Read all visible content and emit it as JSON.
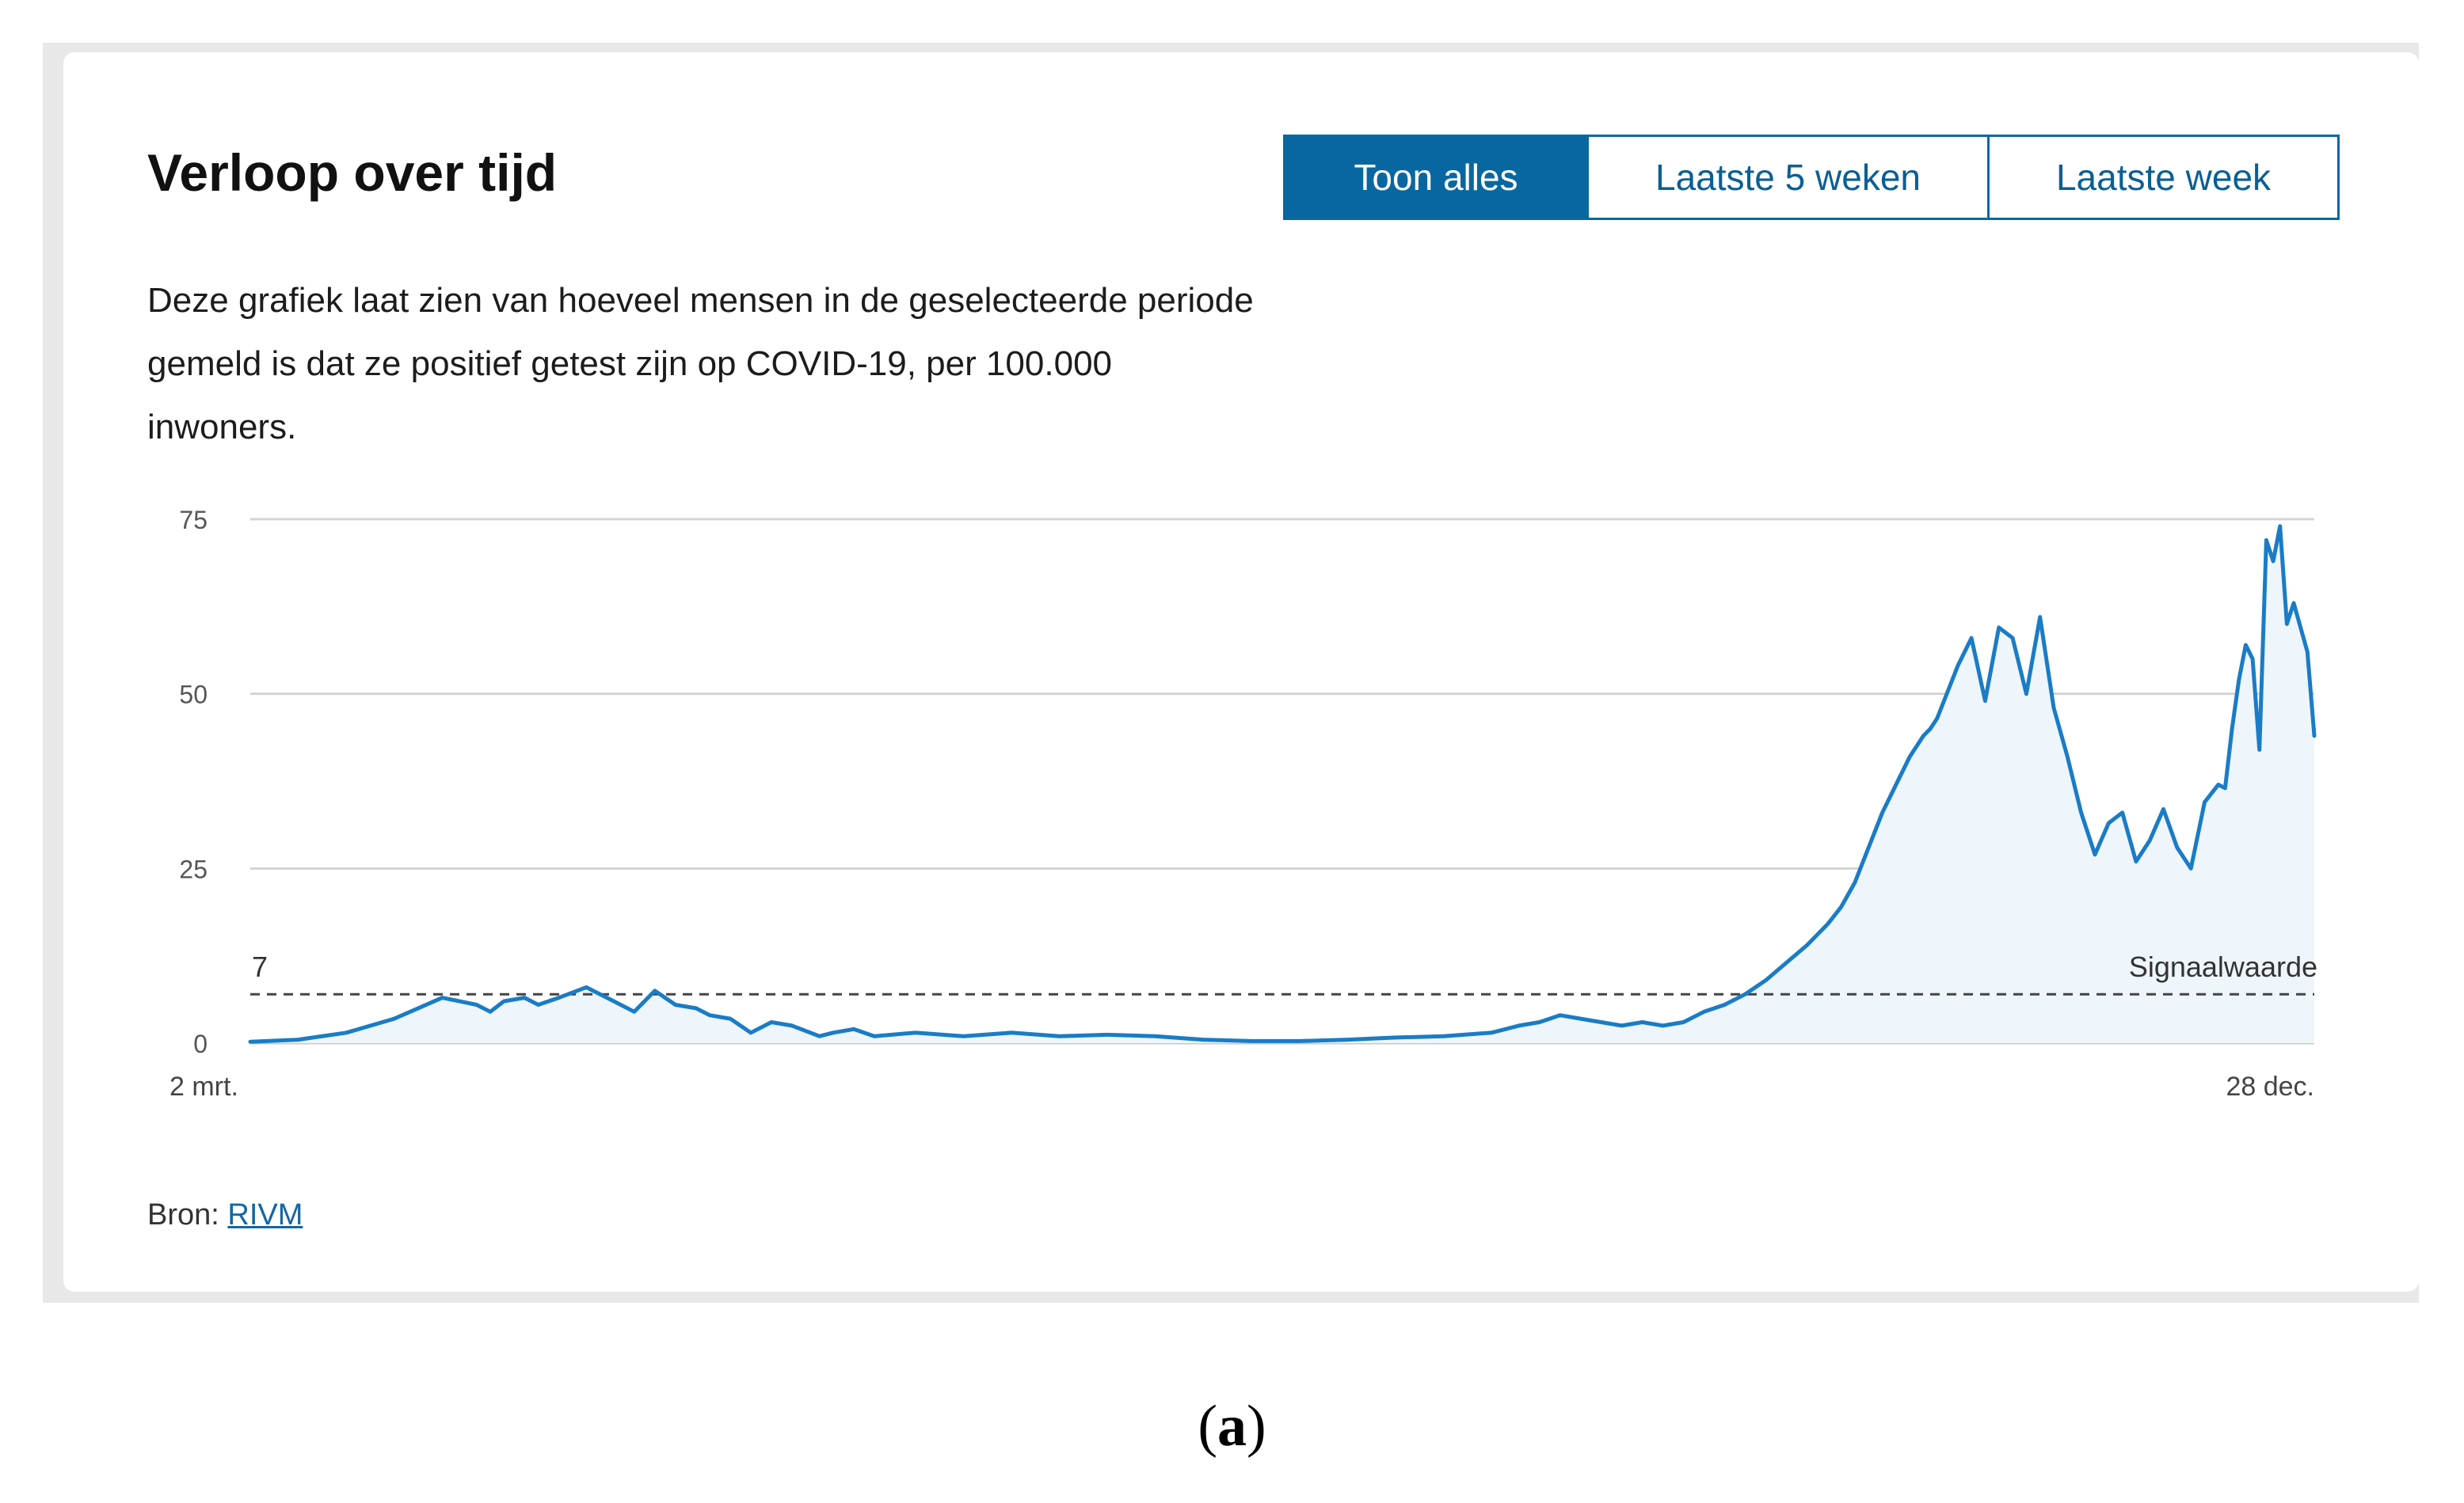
{
  "header": {
    "title": "Verloop over tijd",
    "description": "Deze grafiek laat zien van hoeveel mensen in de geselecteerde periode gemeld is dat ze positief getest zijn op COVID-19, per 100.000 inwoners."
  },
  "toggle": {
    "options": [
      "Toon alles",
      "Laatste 5 weken",
      "Laatste week"
    ],
    "active": "Toon alles"
  },
  "source": {
    "label": "Bron:",
    "link": "RIVM"
  },
  "caption": {
    "open": "(",
    "letter": "a",
    "close": ")"
  },
  "colors": {
    "accent": "#0867a0",
    "line": "#1a7cc6",
    "area": "#eef5fb",
    "grid": "#d4d4d4",
    "threshold": "#444444"
  },
  "chart_data": {
    "type": "area",
    "title": "",
    "xlabel": "",
    "ylabel": "",
    "ylim": [
      0,
      75
    ],
    "yticks": [
      0,
      25,
      50,
      75
    ],
    "xlim": [
      "2020-03-02",
      "2020-12-28"
    ],
    "xtick_labels": [
      "2 mrt.",
      "28 dec."
    ],
    "grid": true,
    "threshold": {
      "value": 7,
      "value_label": "7",
      "label": "Signaalwaarde"
    },
    "series": [
      {
        "x": [
          "2020-03-02",
          "2020-03-09",
          "2020-03-16",
          "2020-03-23",
          "2020-03-30",
          "2020-04-04",
          "2020-04-06",
          "2020-04-08",
          "2020-04-11",
          "2020-04-13",
          "2020-04-16",
          "2020-04-20",
          "2020-04-24",
          "2020-04-27",
          "2020-04-30",
          "2020-05-03",
          "2020-05-06",
          "2020-05-08",
          "2020-05-11",
          "2020-05-14",
          "2020-05-17",
          "2020-05-20",
          "2020-05-24",
          "2020-05-26",
          "2020-05-29",
          "2020-06-01",
          "2020-06-07",
          "2020-06-14",
          "2020-06-21",
          "2020-06-28",
          "2020-07-05",
          "2020-07-12",
          "2020-07-19",
          "2020-07-26",
          "2020-08-02",
          "2020-08-09",
          "2020-08-16",
          "2020-08-23",
          "2020-08-30",
          "2020-09-03",
          "2020-09-06",
          "2020-09-09",
          "2020-09-12",
          "2020-09-15",
          "2020-09-18",
          "2020-09-21",
          "2020-09-24",
          "2020-09-27",
          "2020-09-30",
          "2020-10-03",
          "2020-10-06",
          "2020-10-09",
          "2020-10-12",
          "2020-10-15",
          "2020-10-18",
          "2020-10-20",
          "2020-10-22",
          "2020-10-24",
          "2020-10-26",
          "2020-10-28",
          "2020-10-30",
          "2020-11-01",
          "2020-11-02",
          "2020-11-03",
          "2020-11-04",
          "2020-11-06",
          "2020-11-08",
          "2020-11-10",
          "2020-11-12",
          "2020-11-14",
          "2020-11-16",
          "2020-11-18",
          "2020-11-20",
          "2020-11-22",
          "2020-11-24",
          "2020-11-26",
          "2020-11-28",
          "2020-11-30",
          "2020-12-02",
          "2020-12-04",
          "2020-12-06",
          "2020-12-08",
          "2020-12-10",
          "2020-12-12",
          "2020-12-14",
          "2020-12-15",
          "2020-12-16",
          "2020-12-17",
          "2020-12-18",
          "2020-12-19",
          "2020-12-20",
          "2020-12-21",
          "2020-12-22",
          "2020-12-23",
          "2020-12-24",
          "2020-12-25",
          "2020-12-27",
          "2020-12-28"
        ],
        "values": [
          0.2,
          0.5,
          1.5,
          3.5,
          6.5,
          5.5,
          4.5,
          6.0,
          6.5,
          5.5,
          6.5,
          8.0,
          6.0,
          4.5,
          7.5,
          5.5,
          5.0,
          4.0,
          3.5,
          1.5,
          3.0,
          2.5,
          1.0,
          1.5,
          2.0,
          1.0,
          1.5,
          1.0,
          1.5,
          1.0,
          1.2,
          1.0,
          0.5,
          0.3,
          0.3,
          0.5,
          0.8,
          1.0,
          1.5,
          2.5,
          3.0,
          4.0,
          3.5,
          3.0,
          2.5,
          3.0,
          2.5,
          3.0,
          4.5,
          5.5,
          7.0,
          9.0,
          11.5,
          14.0,
          17.0,
          19.5,
          23.0,
          28.0,
          33.0,
          37.0,
          41.0,
          44.0,
          45.0,
          46.5,
          49.0,
          54.0,
          58.0,
          49.0,
          59.5,
          58.0,
          50.0,
          61.0,
          48.0,
          41.0,
          33.0,
          27.0,
          31.5,
          33.0,
          26.0,
          29.0,
          33.5,
          28.0,
          25.0,
          34.5,
          37.0,
          36.5,
          45.0,
          52.0,
          57.0,
          55.0,
          42.0,
          72.0,
          69.0,
          74.0,
          60.0,
          63.0,
          56.0,
          44.0
        ]
      }
    ]
  }
}
